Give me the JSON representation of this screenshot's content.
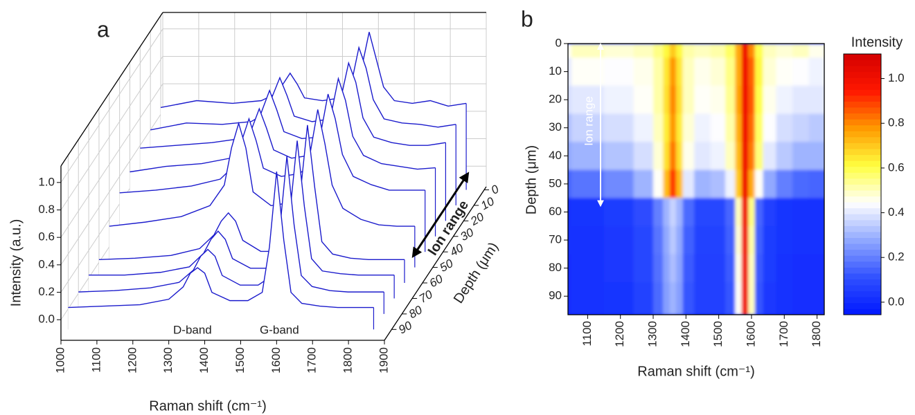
{
  "chart_data": [
    {
      "type": "waterfall",
      "panel_label": "a",
      "x_label": "Raman shift (cm⁻¹)",
      "y_label": "Intensity (a.u.)",
      "z_label": "Depth (μm)",
      "color": "#1a1acc",
      "x": [
        1000,
        1100,
        1200,
        1280,
        1320,
        1340,
        1360,
        1380,
        1400,
        1450,
        1500,
        1540,
        1560,
        1580,
        1600,
        1620,
        1650,
        1700,
        1750,
        1800,
        1850
      ],
      "depths": [
        0,
        10,
        20,
        30,
        40,
        50,
        60,
        70,
        80,
        90
      ],
      "values": [
        [
          0.45,
          0.5,
          0.48,
          0.5,
          0.55,
          0.62,
          0.7,
          0.62,
          0.52,
          0.5,
          0.52,
          0.58,
          0.75,
          1.0,
          0.8,
          0.6,
          0.5,
          0.48,
          0.5,
          0.46,
          0.48
        ],
        [
          0.4,
          0.45,
          0.44,
          0.46,
          0.52,
          0.65,
          0.78,
          0.65,
          0.5,
          0.46,
          0.48,
          0.55,
          0.75,
          1.0,
          0.85,
          0.62,
          0.48,
          0.45,
          0.44,
          0.42,
          0.44
        ],
        [
          0.38,
          0.4,
          0.42,
          0.45,
          0.52,
          0.66,
          0.8,
          0.66,
          0.5,
          0.45,
          0.46,
          0.54,
          0.76,
          1.0,
          0.86,
          0.6,
          0.46,
          0.42,
          0.4,
          0.4,
          0.42
        ],
        [
          0.32,
          0.36,
          0.38,
          0.42,
          0.5,
          0.64,
          0.78,
          0.64,
          0.48,
          0.42,
          0.44,
          0.52,
          0.74,
          1.0,
          0.84,
          0.58,
          0.44,
          0.38,
          0.36,
          0.34,
          0.35
        ],
        [
          0.28,
          0.3,
          0.33,
          0.38,
          0.48,
          0.66,
          0.82,
          0.66,
          0.46,
          0.4,
          0.42,
          0.5,
          0.72,
          1.0,
          0.82,
          0.56,
          0.4,
          0.34,
          0.3,
          0.3,
          0.3
        ],
        [
          0.15,
          0.18,
          0.22,
          0.3,
          0.45,
          0.72,
          0.9,
          0.72,
          0.4,
          0.3,
          0.32,
          0.42,
          0.7,
          1.0,
          0.75,
          0.45,
          0.28,
          0.2,
          0.16,
          0.15,
          0.15
        ],
        [
          0.02,
          0.03,
          0.05,
          0.1,
          0.2,
          0.3,
          0.36,
          0.3,
          0.16,
          0.08,
          0.08,
          0.15,
          0.5,
          1.0,
          0.55,
          0.15,
          0.06,
          0.03,
          0.02,
          0.02,
          0.02
        ],
        [
          0.02,
          0.02,
          0.04,
          0.08,
          0.18,
          0.28,
          0.34,
          0.28,
          0.14,
          0.07,
          0.07,
          0.14,
          0.48,
          1.0,
          0.52,
          0.14,
          0.05,
          0.03,
          0.02,
          0.02,
          0.02
        ],
        [
          0.01,
          0.02,
          0.04,
          0.08,
          0.17,
          0.27,
          0.32,
          0.27,
          0.13,
          0.06,
          0.06,
          0.13,
          0.46,
          1.0,
          0.5,
          0.13,
          0.05,
          0.02,
          0.01,
          0.01,
          0.01
        ],
        [
          0.01,
          0.02,
          0.03,
          0.07,
          0.16,
          0.26,
          0.3,
          0.26,
          0.12,
          0.06,
          0.06,
          0.12,
          0.45,
          1.0,
          0.5,
          0.12,
          0.04,
          0.02,
          0.01,
          0.01,
          0.01
        ]
      ],
      "xlim": [
        1000,
        1900
      ],
      "xticks": [
        1000,
        1100,
        1200,
        1300,
        1400,
        1500,
        1600,
        1700,
        1800,
        1900
      ],
      "ylim": [
        -0.15,
        1.12
      ],
      "yticks": [
        {
          "value": 0,
          "label": "0.0"
        },
        {
          "value": 0.2,
          "label": "0.2"
        },
        {
          "value": 0.4,
          "label": "0.4"
        },
        {
          "value": 0.6,
          "label": "0.6"
        },
        {
          "value": 0.8,
          "label": "0.8"
        },
        {
          "value": 1,
          "label": "1.0"
        }
      ],
      "zlim": [
        -2,
        97
      ],
      "zticks": [
        0,
        10,
        20,
        30,
        40,
        50,
        60,
        70,
        80,
        90
      ],
      "annotations": [
        "D-band",
        "G-band"
      ],
      "ion_range": {
        "text": "Ion range",
        "span": [
          0,
          50
        ]
      }
    },
    {
      "type": "heatmap",
      "panel_label": "b",
      "x_label": "Raman shift (cm⁻¹)",
      "y_label": "Depth (μm)",
      "colorbar_label": "Intensity",
      "x": [
        1000,
        1100,
        1200,
        1280,
        1320,
        1340,
        1360,
        1380,
        1400,
        1450,
        1500,
        1540,
        1560,
        1580,
        1600,
        1620,
        1650,
        1700,
        1750,
        1800,
        1850
      ],
      "y": [
        0,
        10,
        20,
        30,
        40,
        50,
        60,
        70,
        80,
        90
      ],
      "z": [
        [
          0.45,
          0.5,
          0.48,
          0.5,
          0.55,
          0.62,
          0.7,
          0.62,
          0.52,
          0.5,
          0.52,
          0.58,
          0.75,
          1.0,
          0.8,
          0.6,
          0.5,
          0.48,
          0.5,
          0.46,
          0.48
        ],
        [
          0.4,
          0.45,
          0.44,
          0.46,
          0.52,
          0.65,
          0.78,
          0.65,
          0.5,
          0.46,
          0.48,
          0.55,
          0.75,
          1.0,
          0.85,
          0.62,
          0.48,
          0.45,
          0.44,
          0.42,
          0.44
        ],
        [
          0.38,
          0.4,
          0.42,
          0.45,
          0.52,
          0.66,
          0.8,
          0.66,
          0.5,
          0.45,
          0.46,
          0.54,
          0.76,
          1.0,
          0.86,
          0.6,
          0.46,
          0.42,
          0.4,
          0.4,
          0.42
        ],
        [
          0.32,
          0.36,
          0.38,
          0.42,
          0.5,
          0.64,
          0.78,
          0.64,
          0.48,
          0.42,
          0.44,
          0.52,
          0.74,
          1.0,
          0.84,
          0.58,
          0.44,
          0.38,
          0.36,
          0.34,
          0.35
        ],
        [
          0.28,
          0.3,
          0.33,
          0.38,
          0.48,
          0.66,
          0.82,
          0.66,
          0.46,
          0.4,
          0.42,
          0.5,
          0.72,
          1.0,
          0.82,
          0.56,
          0.4,
          0.34,
          0.3,
          0.3,
          0.3
        ],
        [
          0.15,
          0.18,
          0.22,
          0.3,
          0.45,
          0.72,
          0.9,
          0.72,
          0.4,
          0.3,
          0.32,
          0.42,
          0.7,
          1.0,
          0.75,
          0.45,
          0.28,
          0.2,
          0.16,
          0.15,
          0.15
        ],
        [
          0.02,
          0.03,
          0.05,
          0.1,
          0.2,
          0.3,
          0.36,
          0.3,
          0.16,
          0.08,
          0.08,
          0.15,
          0.5,
          1.0,
          0.55,
          0.15,
          0.06,
          0.03,
          0.02,
          0.02,
          0.02
        ],
        [
          0.02,
          0.02,
          0.04,
          0.08,
          0.18,
          0.28,
          0.34,
          0.28,
          0.14,
          0.07,
          0.07,
          0.14,
          0.48,
          1.0,
          0.52,
          0.14,
          0.05,
          0.03,
          0.02,
          0.02,
          0.02
        ],
        [
          0.01,
          0.02,
          0.04,
          0.08,
          0.17,
          0.27,
          0.32,
          0.27,
          0.13,
          0.06,
          0.06,
          0.13,
          0.46,
          1.0,
          0.5,
          0.13,
          0.05,
          0.02,
          0.01,
          0.01,
          0.01
        ],
        [
          0.01,
          0.02,
          0.03,
          0.07,
          0.16,
          0.26,
          0.3,
          0.26,
          0.12,
          0.06,
          0.06,
          0.12,
          0.45,
          1.0,
          0.5,
          0.12,
          0.04,
          0.02,
          0.01,
          0.01,
          0.01
        ]
      ],
      "xlim": [
        1040,
        1822
      ],
      "xticks": [
        1100,
        1200,
        1300,
        1400,
        1500,
        1600,
        1700,
        1800
      ],
      "ylim": [
        0,
        96.6
      ],
      "yticks": [
        0,
        10,
        20,
        30,
        40,
        50,
        60,
        70,
        80,
        90
      ],
      "y_inverted": true,
      "clim": [
        -0.056,
        1.11
      ],
      "cticks": [
        {
          "value": 0,
          "label": "0.0"
        },
        {
          "value": 0.2,
          "label": "0.2"
        },
        {
          "value": 0.4,
          "label": "0.4"
        },
        {
          "value": 0.6,
          "label": "0.6"
        },
        {
          "value": 0.8,
          "label": "0.8"
        },
        {
          "value": 1,
          "label": "1.0"
        }
      ],
      "colormap": [
        "#0018ff",
        "#3050ff",
        "#90a8ff",
        "#ffffff",
        "#ffff40",
        "#ff9a00",
        "#ff1800",
        "#d40000"
      ],
      "ion_range": {
        "text": "Ion range",
        "span": [
          0,
          57
        ]
      }
    }
  ]
}
